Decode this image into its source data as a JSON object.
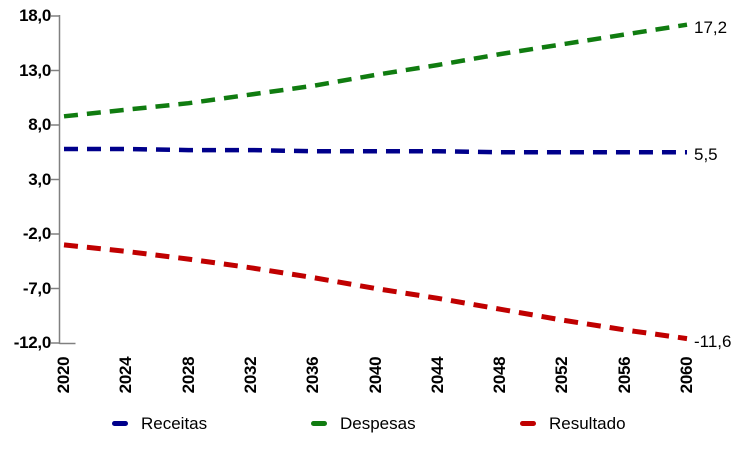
{
  "chart_data": {
    "type": "line",
    "title": "",
    "line_style": "dashed",
    "grid": false,
    "legend_position": "bottom",
    "axis_color": "#808080",
    "background_color": "#ffffff",
    "ylim": [
      -12,
      18
    ],
    "ytick_labels": [
      "18,0",
      "13,0",
      "8,0",
      "3,0",
      "-2,0",
      "-7,0",
      "-12,0"
    ],
    "ytick_values": [
      18,
      13,
      8,
      3,
      -2,
      -7,
      -12
    ],
    "xticks": [
      "2020",
      "2024",
      "2028",
      "2032",
      "2036",
      "2040",
      "2044",
      "2048",
      "2052",
      "2056",
      "2060"
    ],
    "x_years": [
      2020,
      2024,
      2028,
      2032,
      2036,
      2040,
      2044,
      2048,
      2052,
      2056,
      2060
    ],
    "series": [
      {
        "name": "Receitas",
        "color": "#00008B",
        "stroke_width": 4.5,
        "values": [
          5.8,
          5.8,
          5.7,
          5.7,
          5.6,
          5.6,
          5.6,
          5.5,
          5.5,
          5.5,
          5.5
        ],
        "end_label": "5,5"
      },
      {
        "name": "Despesas",
        "color": "#107C10",
        "stroke_width": 4.5,
        "values": [
          8.8,
          9.4,
          10.0,
          10.8,
          11.6,
          12.6,
          13.5,
          14.5,
          15.4,
          16.3,
          17.2
        ],
        "end_label": "17,2"
      },
      {
        "name": "Resultado",
        "color": "#C00000",
        "stroke_width": 5,
        "values": [
          -3.0,
          -3.6,
          -4.3,
          -5.1,
          -6.0,
          -7.0,
          -7.9,
          -8.9,
          -9.9,
          -10.8,
          -11.6
        ],
        "end_label": "-11,6"
      }
    ]
  }
}
